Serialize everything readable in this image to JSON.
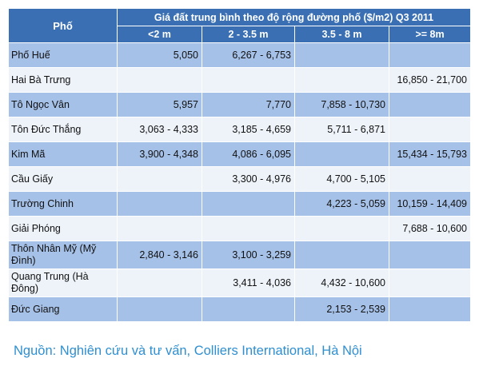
{
  "table": {
    "street_header": "Phố",
    "group_header": "Giá đất trung bình theo độ rộng đường phố ($/m2) Q3 2011",
    "columns": [
      "<2 m",
      "2 - 3.5 m",
      "3.5 - 8 m",
      ">= 8m"
    ],
    "rows": [
      {
        "street": "Phố Huế",
        "values": [
          "5,050",
          "6,267 - 6,753",
          "",
          ""
        ]
      },
      {
        "street": "Hai Bà Trưng",
        "values": [
          "",
          "",
          "",
          "16,850 - 21,700"
        ]
      },
      {
        "street": "Tô Ngọc Vân",
        "values": [
          "5,957",
          "7,770",
          "7,858 - 10,730",
          ""
        ]
      },
      {
        "street": "Tôn Đức Thắng",
        "values": [
          "3,063 - 4,333",
          "3,185 - 4,659",
          "5,711 - 6,871",
          ""
        ]
      },
      {
        "street": "Kim Mã",
        "values": [
          "3,900 - 4,348",
          "4,086 - 6,095",
          "",
          "15,434 - 15,793"
        ]
      },
      {
        "street": "Cầu Giấy",
        "values": [
          "",
          "3,300 - 4,976",
          "4,700 - 5,105",
          ""
        ]
      },
      {
        "street": "Trường Chinh",
        "values": [
          "",
          "",
          "4,223 - 5,059",
          "10,159 - 14,409"
        ]
      },
      {
        "street": "Giải Phóng",
        "values": [
          "",
          "",
          "",
          "7,688 - 10,600"
        ]
      },
      {
        "street": "Thôn Nhân Mỹ (Mỹ Đình)",
        "values": [
          "2,840 - 3,146",
          "3,100 - 3,259",
          "",
          ""
        ]
      },
      {
        "street": "Quang Trung (Hà Đông)",
        "values": [
          "",
          "3,411 - 4,036",
          "4,432 - 10,600",
          ""
        ]
      },
      {
        "street": "Đức Giang",
        "values": [
          "",
          "",
          "2,153 - 2,539",
          ""
        ]
      }
    ]
  },
  "source": "Nguồn: Nghiên cứu và tư vấn, Colliers International, Hà Nội",
  "colors": {
    "header_bg": "#3a70b3",
    "row_shaded": "#a6c1e8",
    "row_plain": "#eef3fa",
    "source_text": "#2e8fd1"
  }
}
